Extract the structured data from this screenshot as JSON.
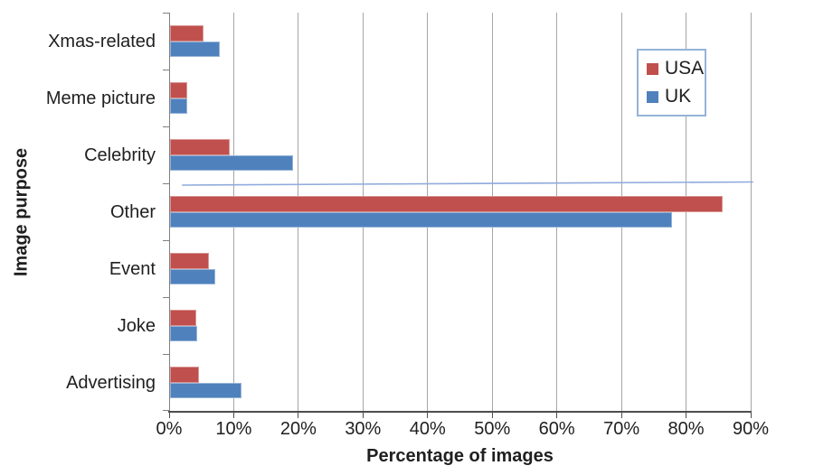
{
  "chart_data": {
    "type": "bar",
    "orientation": "horizontal",
    "title": "",
    "xlabel": "Percentage of images",
    "ylabel": "Image purpose",
    "categories": [
      "Xmas-related",
      "Meme picture",
      "Celebrity",
      "Other",
      "Event",
      "Joke",
      "Advertising"
    ],
    "series": [
      {
        "name": "USA",
        "color": "#C0504D",
        "values": [
          5.2,
          2.7,
          9.2,
          85.5,
          6.0,
          4.0,
          4.5
        ]
      },
      {
        "name": "UK",
        "color": "#4F81BD",
        "values": [
          7.7,
          2.7,
          19.0,
          77.7,
          7.0,
          4.2,
          11.0
        ]
      }
    ],
    "x_ticks": [
      "0%",
      "10%",
      "20%",
      "30%",
      "40%",
      "50%",
      "60%",
      "70%",
      "80%",
      "90%"
    ],
    "xlim": [
      0,
      90
    ],
    "grid": true,
    "legend_position": "upper-right",
    "annotation_line": {
      "type": "line",
      "color": "#8FAADC",
      "position": "thin horizontal line between Celebrity and Other rows",
      "x_start_pct": 2.0,
      "x_end_pct": 90.4
    },
    "colors": {
      "gridline": "#A6A6A6",
      "axis_y": "#808080",
      "axis_x": "#4D4D4D",
      "text": "#1F1F1F",
      "legend_border": "#95B3D7",
      "background": "#FFFFFF"
    }
  }
}
